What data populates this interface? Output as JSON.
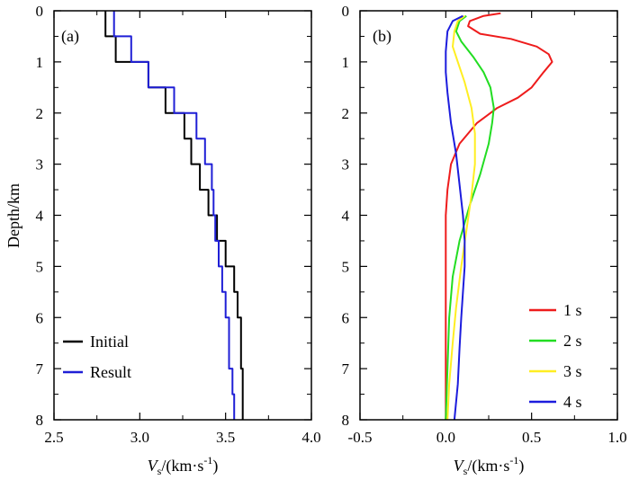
{
  "chart_data": [
    {
      "type": "line",
      "panel_label": "(a)",
      "xlabel": {
        "main": "V",
        "sub": "s",
        "rest": "/(km·s",
        "sup": "-1",
        "close": ")"
      },
      "ylabel": "Depth/km",
      "xlim": [
        2.5,
        4.0
      ],
      "ylim": [
        0,
        8
      ],
      "xticks": [
        "2.5",
        "3.0",
        "3.5",
        "4.0"
      ],
      "yticks": [
        "0",
        "1",
        "2",
        "3",
        "4",
        "5",
        "6",
        "7",
        "8"
      ],
      "legend_position": "bottom-left",
      "series": [
        {
          "name": "Initial",
          "color": "#000000",
          "x": [
            2.8,
            2.8,
            2.86,
            2.86,
            3.05,
            3.05,
            3.15,
            3.15,
            3.26,
            3.26,
            3.3,
            3.3,
            3.35,
            3.35,
            3.4,
            3.4,
            3.45,
            3.45,
            3.5,
            3.5,
            3.55,
            3.55,
            3.57,
            3.57,
            3.59,
            3.59,
            3.6,
            3.6
          ],
          "y": [
            0,
            0.5,
            0.5,
            1.0,
            1.0,
            1.5,
            1.5,
            2.0,
            2.0,
            2.5,
            2.5,
            3.0,
            3.0,
            3.5,
            3.5,
            4.0,
            4.0,
            4.5,
            4.5,
            5.0,
            5.0,
            5.5,
            5.5,
            6.0,
            6.0,
            7.0,
            7.0,
            8.0
          ]
        },
        {
          "name": "Result",
          "color": "#1f1fd6",
          "x": [
            2.85,
            2.85,
            2.95,
            2.95,
            3.05,
            3.05,
            3.2,
            3.2,
            3.33,
            3.33,
            3.38,
            3.38,
            3.42,
            3.42,
            3.43,
            3.43,
            3.44,
            3.44,
            3.46,
            3.46,
            3.48,
            3.48,
            3.5,
            3.5,
            3.52,
            3.52,
            3.54,
            3.54,
            3.55,
            3.55
          ],
          "y": [
            0,
            0.5,
            0.5,
            1.0,
            1.0,
            1.5,
            1.5,
            2.0,
            2.0,
            2.5,
            2.5,
            3.0,
            3.0,
            3.5,
            3.5,
            4.0,
            4.0,
            4.5,
            4.5,
            5.0,
            5.0,
            5.5,
            5.5,
            6.0,
            6.0,
            7.0,
            7.0,
            7.5,
            7.5,
            8.0
          ]
        }
      ]
    },
    {
      "type": "line",
      "panel_label": "(b)",
      "xlabel": {
        "main": "V",
        "sub": "s",
        "rest": "/(km·s",
        "sup": "-1",
        "close": ")"
      },
      "xlim": [
        -0.5,
        1.0
      ],
      "ylim": [
        0,
        8
      ],
      "xticks": [
        "-0.5",
        "0.0",
        "0.5",
        "1.0"
      ],
      "yticks": [
        "0",
        "1",
        "2",
        "3",
        "4",
        "5",
        "6",
        "7",
        "8"
      ],
      "legend_position": "bottom-right",
      "series": [
        {
          "name": "1 s",
          "color": "#ee1c1c",
          "x": [
            0.32,
            0.22,
            0.14,
            0.13,
            0.2,
            0.38,
            0.53,
            0.6,
            0.62,
            0.57,
            0.5,
            0.42,
            0.3,
            0.18,
            0.08,
            0.03,
            0.01,
            0.0,
            0.0,
            0.0,
            0.0
          ],
          "y": [
            0.05,
            0.1,
            0.2,
            0.3,
            0.45,
            0.55,
            0.7,
            0.85,
            1.0,
            1.2,
            1.5,
            1.7,
            1.9,
            2.2,
            2.6,
            3.0,
            3.5,
            4.0,
            5.0,
            6.0,
            8.0
          ]
        },
        {
          "name": "2 s",
          "color": "#22dd22",
          "x": [
            0.12,
            0.08,
            0.06,
            0.09,
            0.16,
            0.22,
            0.26,
            0.28,
            0.27,
            0.25,
            0.2,
            0.14,
            0.08,
            0.04,
            0.02,
            0.01,
            0.0
          ],
          "y": [
            0.1,
            0.2,
            0.4,
            0.6,
            0.9,
            1.2,
            1.5,
            1.9,
            2.2,
            2.6,
            3.2,
            3.8,
            4.5,
            5.2,
            6.0,
            7.0,
            8.0
          ]
        },
        {
          "name": "3 s",
          "color": "#ffee22",
          "x": [
            0.11,
            0.07,
            0.05,
            0.04,
            0.07,
            0.11,
            0.15,
            0.17,
            0.17,
            0.15,
            0.12,
            0.09,
            0.06,
            0.04,
            0.02,
            0.01
          ],
          "y": [
            0.1,
            0.2,
            0.4,
            0.7,
            1.0,
            1.4,
            1.9,
            2.4,
            3.0,
            3.6,
            4.3,
            5.0,
            5.8,
            6.5,
            7.3,
            8.0
          ]
        },
        {
          "name": "4 s",
          "color": "#1c1cdd",
          "x": [
            0.1,
            0.04,
            0.01,
            0.0,
            0.0,
            0.01,
            0.03,
            0.06,
            0.08,
            0.1,
            0.11,
            0.11,
            0.1,
            0.09,
            0.08,
            0.07,
            0.05
          ],
          "y": [
            0.1,
            0.2,
            0.4,
            0.8,
            1.2,
            1.6,
            2.2,
            2.8,
            3.4,
            4.0,
            4.5,
            5.0,
            5.5,
            6.0,
            6.6,
            7.3,
            8.0
          ]
        }
      ]
    }
  ]
}
